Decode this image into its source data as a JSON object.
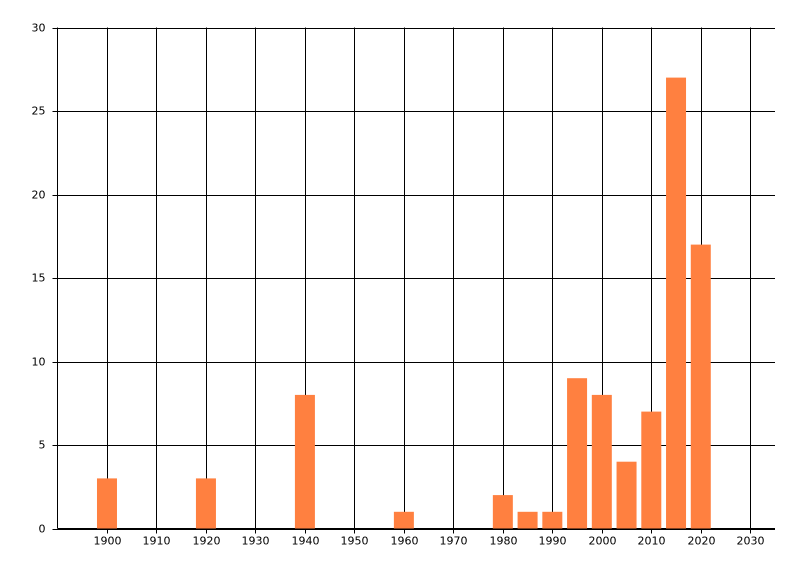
{
  "chart_data": {
    "type": "bar",
    "x": [
      1900,
      1920,
      1940,
      1960,
      1980,
      1985,
      1990,
      1995,
      2000,
      2005,
      2010,
      2015,
      2020
    ],
    "values": [
      3,
      3,
      8,
      1,
      2,
      1,
      1,
      9,
      8,
      4,
      7,
      27,
      17
    ],
    "color": "#ff8040",
    "xlim": [
      1890,
      2035
    ],
    "xticks": [
      1900,
      1910,
      1920,
      1930,
      1940,
      1950,
      1960,
      1970,
      1980,
      1990,
      2000,
      2010,
      2020,
      2030
    ],
    "ylim": [
      0,
      30
    ],
    "yticks": [
      0,
      5,
      10,
      15,
      20,
      25,
      30
    ],
    "grid": true
  }
}
